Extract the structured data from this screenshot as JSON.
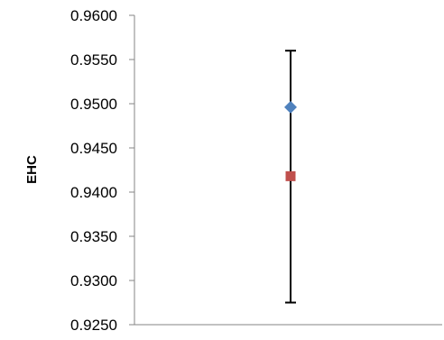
{
  "chart_data": {
    "type": "scatter",
    "title": "",
    "xlabel": "",
    "ylabel": "EHC",
    "ylim": [
      0.925,
      0.96
    ],
    "yticks": [
      "0.9600",
      "0.9550",
      "0.9500",
      "0.9450",
      "0.9400",
      "0.9350",
      "0.9300",
      "0.9250"
    ],
    "grid": false,
    "legend": "none",
    "error_bar": {
      "low": 0.9275,
      "high": 0.956,
      "color": "#000000"
    },
    "points": [
      {
        "marker": "diamond",
        "color": "#4f81bd",
        "y": 0.9496
      },
      {
        "marker": "square",
        "color": "#c0504d",
        "y": 0.9418
      }
    ],
    "axis_color": "#868686"
  }
}
